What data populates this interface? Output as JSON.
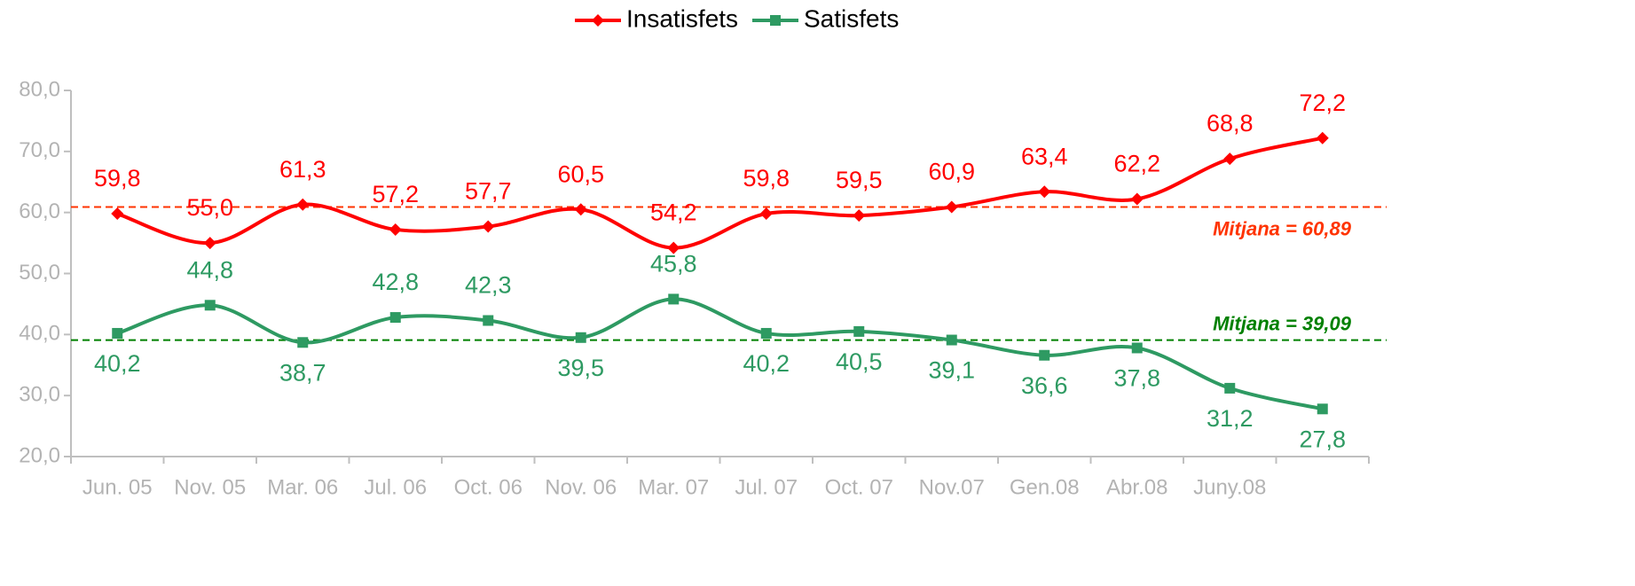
{
  "chart_data": {
    "type": "line",
    "categories": [
      "Jun. 05",
      "Nov. 05",
      "Mar. 06",
      "Jul. 06",
      "Oct. 06",
      "Nov. 06",
      "Mar. 07",
      "Jul. 07",
      "Oct. 07",
      "Nov.07",
      "Gen.08",
      "Abr.08",
      "Juny.08",
      null
    ],
    "series": [
      {
        "name": "Insatisfets",
        "color": "#ff0000",
        "marker": "diamond",
        "values": [
          59.8,
          55.0,
          61.3,
          57.2,
          57.7,
          60.5,
          54.2,
          59.8,
          59.5,
          60.9,
          63.4,
          62.2,
          68.8,
          72.2
        ],
        "value_labels": [
          "59,8",
          "55,0",
          "61,3",
          "57,2",
          "57,7",
          "60,5",
          "54,2",
          "59,8",
          "59,5",
          "60,9",
          "63,4",
          "62,2",
          "68,8",
          "72,2"
        ]
      },
      {
        "name": "Satisfets",
        "color": "#2e9a62",
        "marker": "square",
        "values": [
          40.2,
          44.8,
          38.7,
          42.8,
          42.3,
          39.5,
          45.8,
          40.2,
          40.5,
          39.1,
          36.6,
          37.8,
          31.2,
          27.8
        ],
        "value_labels": [
          "40,2",
          "44,8",
          "38,7",
          "42,8",
          "42,3",
          "39,5",
          "45,8",
          "40,2",
          "40,5",
          "39,1",
          "36,6",
          "37,8",
          "31,2",
          "27,8"
        ]
      }
    ],
    "reference_lines": [
      {
        "value": 60.89,
        "label": "Mitjana = 60,89",
        "color": "#ff3300"
      },
      {
        "value": 39.09,
        "label": "Mitjana = 39,09",
        "color": "#008000"
      }
    ],
    "ylim": [
      20,
      80
    ],
    "yticks": [
      {
        "value": 20,
        "label": "20,0"
      },
      {
        "value": 30,
        "label": "30,0"
      },
      {
        "value": 40,
        "label": "40,0"
      },
      {
        "value": 50,
        "label": "50,0"
      },
      {
        "value": 60,
        "label": "60,0"
      },
      {
        "value": 70,
        "label": "70,0"
      },
      {
        "value": 80,
        "label": "80,0"
      }
    ],
    "grid": false,
    "legend": "top"
  }
}
